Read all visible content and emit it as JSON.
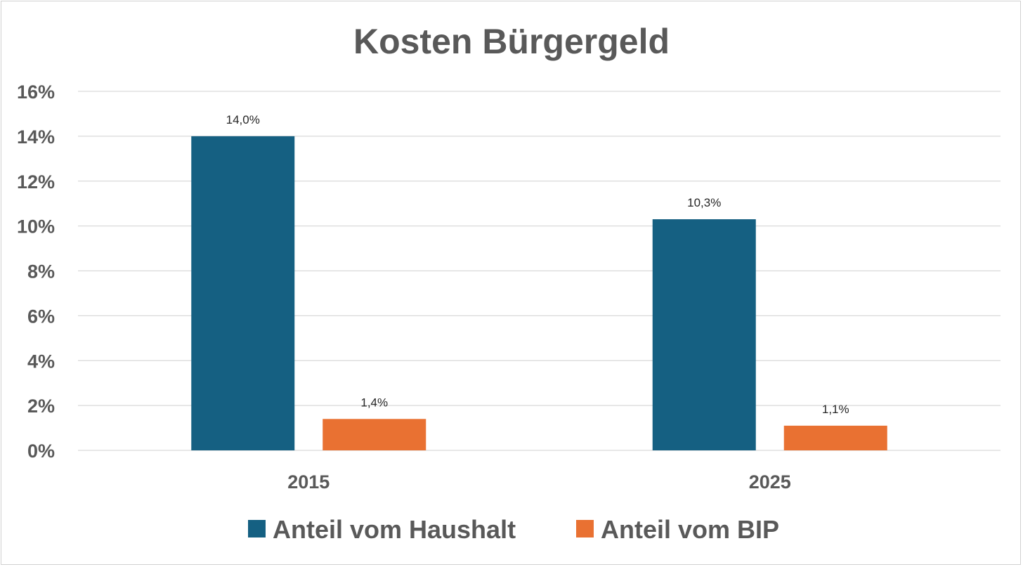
{
  "chart_data": {
    "type": "bar",
    "title": "Kosten Bürgergeld",
    "xlabel": "",
    "ylabel": "",
    "categories": [
      "2015",
      "2025"
    ],
    "series": [
      {
        "name": "Anteil vom Haushalt",
        "color": "#156082",
        "values": [
          14.0,
          10.3
        ],
        "labels": [
          "14,0%",
          "10,3%"
        ]
      },
      {
        "name": "Anteil vom BIP",
        "color": "#E97132",
        "values": [
          1.4,
          1.1
        ],
        "labels": [
          "1,4%",
          "1,1%"
        ]
      }
    ],
    "ylim": [
      0,
      16
    ],
    "yticks": [
      {
        "value": 0,
        "label": "0%"
      },
      {
        "value": 2,
        "label": "2%"
      },
      {
        "value": 4,
        "label": "4%"
      },
      {
        "value": 6,
        "label": "6%"
      },
      {
        "value": 8,
        "label": "8%"
      },
      {
        "value": 10,
        "label": "10%"
      },
      {
        "value": 12,
        "label": "12%"
      },
      {
        "value": 14,
        "label": "14%"
      },
      {
        "value": 16,
        "label": "16%"
      }
    ],
    "grid": true,
    "legend": "bottom"
  }
}
